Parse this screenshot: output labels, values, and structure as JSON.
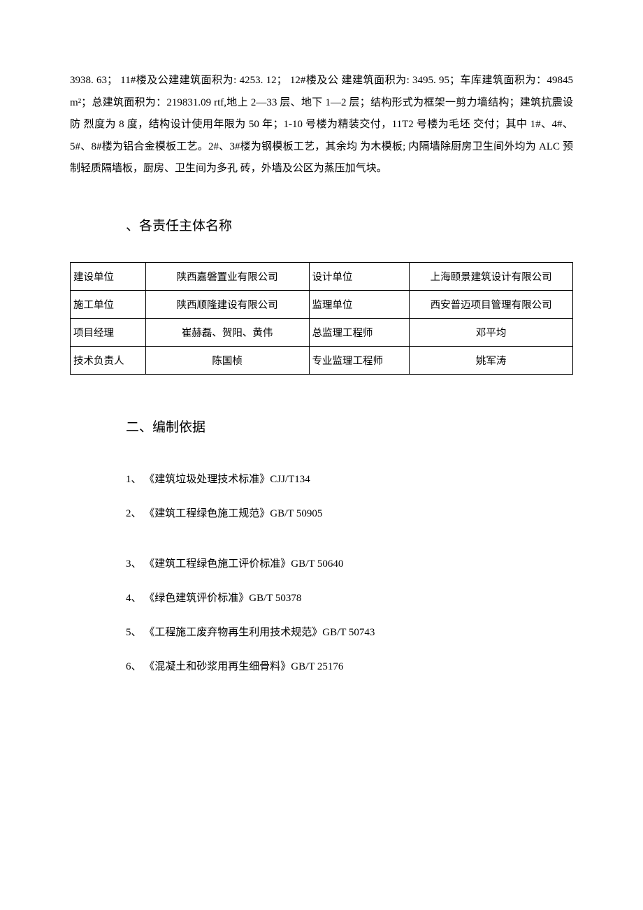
{
  "paragraph": "3938. 63； 11#楼及公建建筑面积为: 4253. 12； 12#楼及公 建建筑面积为: 3495. 95；车库建筑面积为：49845 m²；总建筑面积为：219831.09 rtf,地上 2—33 层、地下 1—2 层；结构形式为框架一剪力墙结构；建筑抗震设防 烈度为 8 度，结构设计使用年限为 50 年；1-10 号楼为精装交付，11T2 号楼为毛坯 交付；其中 1#、4#、5#、8#楼为铝合金模板工艺。2#、3#楼为钢模板工艺，其余均 为木模板; 内隔墙除厨房卫生间外均为 ALC 预制轻质隔墙板，厨房、卫生间为多孔 砖，外墙及公区为蒸压加气块。",
  "section1_heading": "、各责任主体名称",
  "table": {
    "rows": [
      {
        "l1": "建设单位",
        "v1": "陕西嘉磐置业有限公司",
        "l2": "设计单位",
        "v2": "上海颐景建筑设计有限公司"
      },
      {
        "l1": "施工单位",
        "v1": "陕西顺隆建设有限公司",
        "l2": "监理单位",
        "v2": "西安普迈项目管理有限公司"
      },
      {
        "l1": "项目经理",
        "v1": "崔赫磊、贺阳、黄伟",
        "l2": "总监理工程师",
        "v2": "邓平均"
      },
      {
        "l1": "技术负责人",
        "v1": "陈国桢",
        "l2": "专业监理工程师",
        "v2": "姚军涛"
      }
    ]
  },
  "section2_heading": "二、编制依据",
  "references": [
    "1、  《建筑垃圾处理技术标准》CJJ/T134",
    "2、  《建筑工程绿色施工规范》GB/T 50905",
    "3、  《建筑工程绿色施工评价标准》GB/T 50640",
    "4、  《绿色建筑评价标准》GB/T 50378",
    "5、  《工程施工废弃物再生利用技术规范》GB/T 50743",
    "6、  《混凝土和砂浆用再生细骨料》GB/T 25176"
  ]
}
